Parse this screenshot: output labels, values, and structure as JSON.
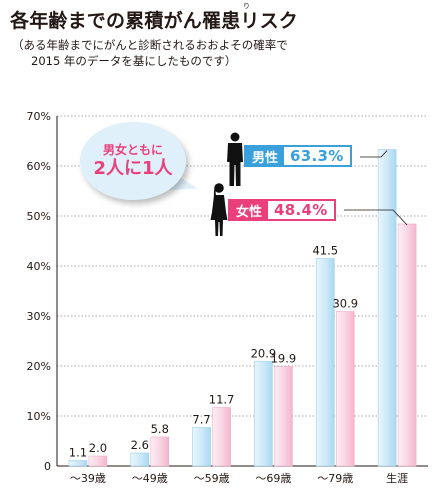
{
  "title": "各年齢までの累積がん罹患リスク",
  "title_ruby": "り",
  "subtitle_lines": [
    "（ある年齢までにがんと診断されるおおよその確率で",
    "2015 年のデータを基にしたものです）"
  ],
  "callout": {
    "line1": "男女ともに",
    "line2": "2人に1人"
  },
  "badges": {
    "male": {
      "label": "男性",
      "value": "63.3%"
    },
    "female": {
      "label": "女性",
      "value": "48.4%"
    }
  },
  "colors": {
    "male_bar": "#cfe9f7",
    "female_bar": "#f9d6e4",
    "male_accent": "#3aa0dc",
    "female_accent": "#e9407c",
    "callout_bg": "#dff0fa"
  },
  "icons": [
    "male-silhouette-icon",
    "female-silhouette-icon"
  ],
  "chart_data": {
    "type": "bar",
    "categories": [
      "～39歳",
      "～49歳",
      "～59歳",
      "～69歳",
      "～79歳",
      "生涯"
    ],
    "series": [
      {
        "name": "男性",
        "values": [
          1.1,
          2.6,
          7.7,
          20.9,
          41.5,
          63.3
        ]
      },
      {
        "name": "女性",
        "values": [
          2.0,
          5.8,
          11.7,
          19.9,
          30.9,
          48.4
        ]
      }
    ],
    "data_labels": [
      [
        "1.1",
        "2.6",
        "7.7",
        "20.9",
        "41.5",
        ""
      ],
      [
        "2.0",
        "5.8",
        "11.7",
        "19.9",
        "30.9",
        ""
      ]
    ],
    "ylim": [
      0,
      70
    ],
    "yticks": [
      "0",
      "10%",
      "20%",
      "30%",
      "40%",
      "50%",
      "60%",
      "70%"
    ],
    "grid": true
  }
}
